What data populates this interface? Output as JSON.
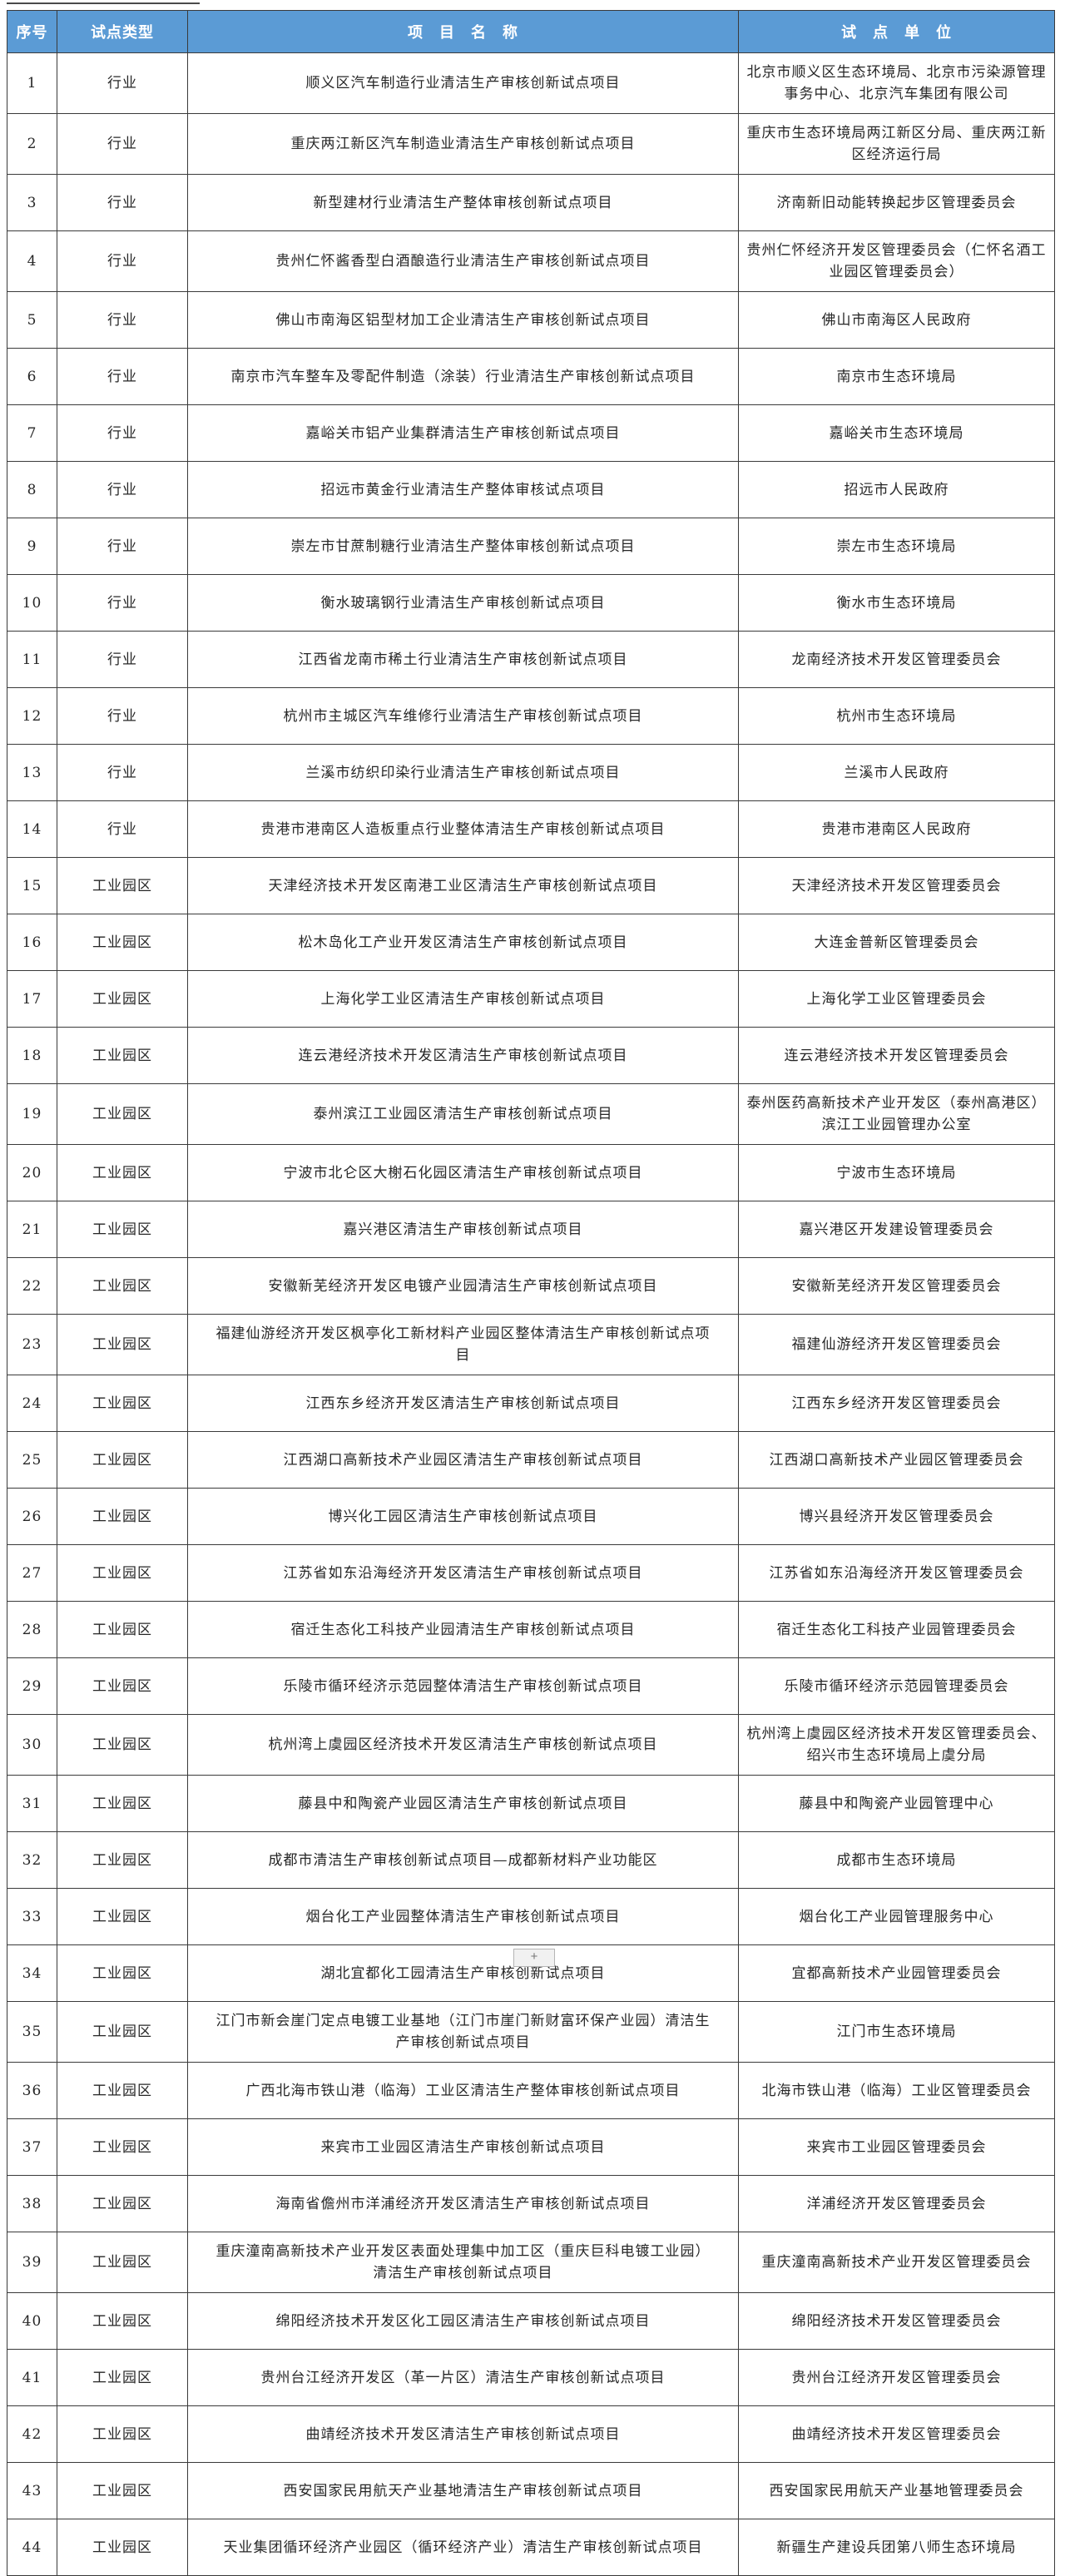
{
  "table": {
    "header": {
      "col_index": "序号",
      "col_type": "试点类型",
      "col_project": "项　目　名　称",
      "col_unit": "试　点　单　位",
      "header_bg": "#5B9BD5",
      "header_text_color": "#ffffff"
    },
    "rows": [
      {
        "index": "1",
        "type": "行业",
        "project": "顺义区汽车制造行业清洁生产审核创新试点项目",
        "unit": "北京市顺义区生态环境局、北京市污染源管理事务中心、北京汽车集团有限公司"
      },
      {
        "index": "2",
        "type": "行业",
        "project": "重庆两江新区汽车制造业清洁生产审核创新试点项目",
        "unit": "重庆市生态环境局两江新区分局、重庆两江新区经济运行局"
      },
      {
        "index": "3",
        "type": "行业",
        "project": "新型建材行业清洁生产整体审核创新试点项目",
        "unit": "济南新旧动能转换起步区管理委员会"
      },
      {
        "index": "4",
        "type": "行业",
        "project": "贵州仁怀酱香型白酒酿造行业清洁生产审核创新试点项目",
        "unit": "贵州仁怀经济开发区管理委员会（仁怀名酒工业园区管理委员会）"
      },
      {
        "index": "5",
        "type": "行业",
        "project": "佛山市南海区铝型材加工企业清洁生产审核创新试点项目",
        "unit": "佛山市南海区人民政府"
      },
      {
        "index": "6",
        "type": "行业",
        "project": "南京市汽车整车及零配件制造（涂装）行业清洁生产审核创新试点项目",
        "unit": "南京市生态环境局"
      },
      {
        "index": "7",
        "type": "行业",
        "project": "嘉峪关市铝产业集群清洁生产审核创新试点项目",
        "unit": "嘉峪关市生态环境局"
      },
      {
        "index": "8",
        "type": "行业",
        "project": "招远市黄金行业清洁生产整体审核试点项目",
        "unit": "招远市人民政府"
      },
      {
        "index": "9",
        "type": "行业",
        "project": "崇左市甘蔗制糖行业清洁生产整体审核创新试点项目",
        "unit": "崇左市生态环境局"
      },
      {
        "index": "10",
        "type": "行业",
        "project": "衡水玻璃钢行业清洁生产审核创新试点项目",
        "unit": "衡水市生态环境局"
      },
      {
        "index": "11",
        "type": "行业",
        "project": "江西省龙南市稀土行业清洁生产审核创新试点项目",
        "unit": "龙南经济技术开发区管理委员会"
      },
      {
        "index": "12",
        "type": "行业",
        "project": "杭州市主城区汽车维修行业清洁生产审核创新试点项目",
        "unit": "杭州市生态环境局"
      },
      {
        "index": "13",
        "type": "行业",
        "project": "兰溪市纺织印染行业清洁生产审核创新试点项目",
        "unit": "兰溪市人民政府"
      },
      {
        "index": "14",
        "type": "行业",
        "project": "贵港市港南区人造板重点行业整体清洁生产审核创新试点项目",
        "unit": "贵港市港南区人民政府"
      },
      {
        "index": "15",
        "type": "工业园区",
        "project": "天津经济技术开发区南港工业区清洁生产审核创新试点项目",
        "unit": "天津经济技术开发区管理委员会"
      },
      {
        "index": "16",
        "type": "工业园区",
        "project": "松木岛化工产业开发区清洁生产审核创新试点项目",
        "unit": "大连金普新区管理委员会"
      },
      {
        "index": "17",
        "type": "工业园区",
        "project": "上海化学工业区清洁生产审核创新试点项目",
        "unit": "上海化学工业区管理委员会"
      },
      {
        "index": "18",
        "type": "工业园区",
        "project": "连云港经济技术开发区清洁生产审核创新试点项目",
        "unit": "连云港经济技术开发区管理委员会"
      },
      {
        "index": "19",
        "type": "工业园区",
        "project": "泰州滨江工业园区清洁生产审核创新试点项目",
        "unit": "泰州医药高新技术产业开发区（泰州高港区）滨江工业园管理办公室"
      },
      {
        "index": "20",
        "type": "工业园区",
        "project": "宁波市北仑区大榭石化园区清洁生产审核创新试点项目",
        "unit": "宁波市生态环境局"
      },
      {
        "index": "21",
        "type": "工业园区",
        "project": "嘉兴港区清洁生产审核创新试点项目",
        "unit": "嘉兴港区开发建设管理委员会"
      },
      {
        "index": "22",
        "type": "工业园区",
        "project": "安徽新芜经济开发区电镀产业园清洁生产审核创新试点项目",
        "unit": "安徽新芜经济开发区管理委员会"
      },
      {
        "index": "23",
        "type": "工业园区",
        "project": "福建仙游经济开发区枫亭化工新材料产业园区整体清洁生产审核创新试点项目",
        "unit": "福建仙游经济开发区管理委员会"
      },
      {
        "index": "24",
        "type": "工业园区",
        "project": "江西东乡经济开发区清洁生产审核创新试点项目",
        "unit": "江西东乡经济开发区管理委员会"
      },
      {
        "index": "25",
        "type": "工业园区",
        "project": "江西湖口高新技术产业园区清洁生产审核创新试点项目",
        "unit": "江西湖口高新技术产业园区管理委员会"
      },
      {
        "index": "26",
        "type": "工业园区",
        "project": "博兴化工园区清洁生产审核创新试点项目",
        "unit": "博兴县经济开发区管理委员会"
      },
      {
        "index": "27",
        "type": "工业园区",
        "project": "江苏省如东沿海经济开发区清洁生产审核创新试点项目",
        "unit": "江苏省如东沿海经济开发区管理委员会"
      },
      {
        "index": "28",
        "type": "工业园区",
        "project": "宿迁生态化工科技产业园清洁生产审核创新试点项目",
        "unit": "宿迁生态化工科技产业园管理委员会"
      },
      {
        "index": "29",
        "type": "工业园区",
        "project": "乐陵市循环经济示范园整体清洁生产审核创新试点项目",
        "unit": "乐陵市循环经济示范园管理委员会"
      },
      {
        "index": "30",
        "type": "工业园区",
        "project": "杭州湾上虞园区经济技术开发区清洁生产审核创新试点项目",
        "unit": "杭州湾上虞园区经济技术开发区管理委员会、绍兴市生态环境局上虞分局"
      },
      {
        "index": "31",
        "type": "工业园区",
        "project": "藤县中和陶瓷产业园区清洁生产审核创新试点项目",
        "unit": "藤县中和陶瓷产业园管理中心"
      },
      {
        "index": "32",
        "type": "工业园区",
        "project": "成都市清洁生产审核创新试点项目—成都新材料产业功能区",
        "unit": "成都市生态环境局"
      },
      {
        "index": "33",
        "type": "工业园区",
        "project": "烟台化工产业园整体清洁生产审核创新试点项目",
        "unit": "烟台化工产业园管理服务中心"
      },
      {
        "index": "34",
        "type": "工业园区",
        "project": "湖北宜都化工园清洁生产审核创新试点项目",
        "unit": "宜都高新技术产业园管理委员会"
      },
      {
        "index": "35",
        "type": "工业园区",
        "project": "江门市新会崖门定点电镀工业基地（江门市崖门新财富环保产业园）清洁生产审核创新试点项目",
        "unit": "江门市生态环境局"
      },
      {
        "index": "36",
        "type": "工业园区",
        "project": "广西北海市铁山港（临海）工业区清洁生产整体审核创新试点项目",
        "unit": "北海市铁山港（临海）工业区管理委员会"
      },
      {
        "index": "37",
        "type": "工业园区",
        "project": "来宾市工业园区清洁生产审核创新试点项目",
        "unit": "来宾市工业园区管理委员会"
      },
      {
        "index": "38",
        "type": "工业园区",
        "project": "海南省儋州市洋浦经济开发区清洁生产审核创新试点项目",
        "unit": "洋浦经济开发区管理委员会"
      },
      {
        "index": "39",
        "type": "工业园区",
        "project": "重庆潼南高新技术产业开发区表面处理集中加工区（重庆巨科电镀工业园）清洁生产审核创新试点项目",
        "unit": "重庆潼南高新技术产业开发区管理委员会"
      },
      {
        "index": "40",
        "type": "工业园区",
        "project": "绵阳经济技术开发区化工园区清洁生产审核创新试点项目",
        "unit": "绵阳经济技术开发区管理委员会"
      },
      {
        "index": "41",
        "type": "工业园区",
        "project": "贵州台江经济开发区（革一片区）清洁生产审核创新试点项目",
        "unit": "贵州台江经济开发区管理委员会"
      },
      {
        "index": "42",
        "type": "工业园区",
        "project": "曲靖经济技术开发区清洁生产审核创新试点项目",
        "unit": "曲靖经济技术开发区管理委员会"
      },
      {
        "index": "43",
        "type": "工业园区",
        "project": "西安国家民用航天产业基地清洁生产审核创新试点项目",
        "unit": "西安国家民用航天产业基地管理委员会"
      },
      {
        "index": "44",
        "type": "工业园区",
        "project": "天业集团循环经济产业园区（循环经济产业）清洁生产审核创新试点项目",
        "unit": "新疆生产建设兵团第八师生态环境局"
      }
    ]
  },
  "footer": {
    "add_button_label": "+"
  }
}
